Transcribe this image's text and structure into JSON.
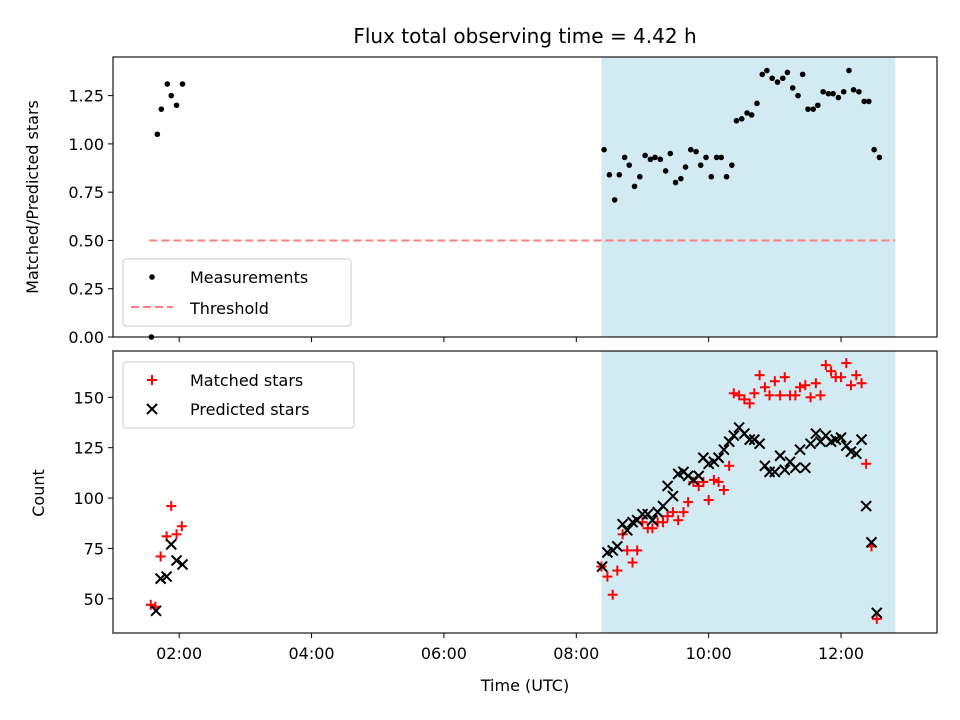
{
  "chart_data": [
    {
      "type": "scatter",
      "title": "Flux total observing time = 4.42 h",
      "xlabel": "",
      "ylabel": "Matched/Predicted stars",
      "x_unit": "hour (UTC)",
      "xlim": [
        1.0,
        13.45
      ],
      "ylim": [
        0.0,
        1.45
      ],
      "yticks": [
        "0.00",
        "0.25",
        "0.50",
        "0.75",
        "1.00",
        "1.25"
      ],
      "highlight_span": [
        8.38,
        12.82
      ],
      "highlight_color": "#add8e6",
      "legend": "lower-left",
      "series": [
        {
          "name": "Measurements",
          "marker": "dot",
          "color": "#000000",
          "points": [
            [
              1.58,
              0.0
            ],
            [
              1.67,
              1.05
            ],
            [
              1.73,
              1.18
            ],
            [
              1.82,
              1.31
            ],
            [
              1.88,
              1.25
            ],
            [
              1.96,
              1.2
            ],
            [
              2.05,
              1.31
            ],
            [
              8.42,
              0.97
            ],
            [
              8.5,
              0.84
            ],
            [
              8.58,
              0.71
            ],
            [
              8.65,
              0.84
            ],
            [
              8.73,
              0.93
            ],
            [
              8.8,
              0.89
            ],
            [
              8.88,
              0.78
            ],
            [
              8.96,
              0.83
            ],
            [
              9.04,
              0.94
            ],
            [
              9.12,
              0.92
            ],
            [
              9.19,
              0.93
            ],
            [
              9.27,
              0.92
            ],
            [
              9.35,
              0.86
            ],
            [
              9.42,
              0.95
            ],
            [
              9.5,
              0.8
            ],
            [
              9.58,
              0.82
            ],
            [
              9.65,
              0.88
            ],
            [
              9.73,
              0.97
            ],
            [
              9.81,
              0.96
            ],
            [
              9.88,
              0.89
            ],
            [
              9.96,
              0.93
            ],
            [
              10.04,
              0.83
            ],
            [
              10.12,
              0.93
            ],
            [
              10.19,
              0.93
            ],
            [
              10.27,
              0.83
            ],
            [
              10.35,
              0.89
            ],
            [
              10.42,
              1.12
            ],
            [
              10.5,
              1.13
            ],
            [
              10.58,
              1.16
            ],
            [
              10.65,
              1.15
            ],
            [
              10.73,
              1.21
            ],
            [
              10.81,
              1.36
            ],
            [
              10.88,
              1.38
            ],
            [
              10.96,
              1.34
            ],
            [
              11.04,
              1.32
            ],
            [
              11.12,
              1.34
            ],
            [
              11.19,
              1.37
            ],
            [
              11.27,
              1.29
            ],
            [
              11.35,
              1.25
            ],
            [
              11.42,
              1.36
            ],
            [
              11.5,
              1.18
            ],
            [
              11.58,
              1.18
            ],
            [
              11.65,
              1.2
            ],
            [
              11.73,
              1.27
            ],
            [
              11.81,
              1.26
            ],
            [
              11.88,
              1.26
            ],
            [
              11.96,
              1.24
            ],
            [
              12.04,
              1.27
            ],
            [
              12.12,
              1.38
            ],
            [
              12.19,
              1.28
            ],
            [
              12.27,
              1.27
            ],
            [
              12.35,
              1.22
            ],
            [
              12.42,
              1.22
            ],
            [
              12.5,
              0.97
            ],
            [
              12.58,
              0.93
            ]
          ]
        },
        {
          "name": "Threshold",
          "marker": "dashed-line",
          "color": "#ff7f7f",
          "points": [
            [
              1.55,
              0.5
            ],
            [
              12.82,
              0.5
            ]
          ]
        }
      ]
    },
    {
      "type": "scatter",
      "title": "",
      "xlabel": "Time (UTC)",
      "ylabel": "Count",
      "x_unit": "hour (UTC)",
      "xlim": [
        1.0,
        13.45
      ],
      "ylim": [
        33,
        173
      ],
      "yticks": [
        "50",
        "75",
        "100",
        "125",
        "150"
      ],
      "xticks": [
        "02:00",
        "04:00",
        "06:00",
        "08:00",
        "10:00",
        "12:00"
      ],
      "highlight_span": [
        8.38,
        12.82
      ],
      "highlight_color": "#add8e6",
      "legend": "upper-left",
      "series": [
        {
          "name": "Matched stars",
          "marker": "plus",
          "color": "#ff0000",
          "points": [
            [
              1.57,
              47
            ],
            [
              1.64,
              46
            ],
            [
              1.72,
              71
            ],
            [
              1.81,
              81
            ],
            [
              1.88,
              96
            ],
            [
              1.96,
              82
            ],
            [
              2.04,
              86
            ],
            [
              8.38,
              66
            ],
            [
              8.47,
              61
            ],
            [
              8.55,
              52
            ],
            [
              8.62,
              64
            ],
            [
              8.7,
              82
            ],
            [
              8.77,
              74
            ],
            [
              8.85,
              68
            ],
            [
              8.92,
              74
            ],
            [
              9.0,
              88
            ],
            [
              9.08,
              85
            ],
            [
              9.15,
              85
            ],
            [
              9.23,
              88
            ],
            [
              9.31,
              88
            ],
            [
              9.38,
              91
            ],
            [
              9.46,
              93
            ],
            [
              9.54,
              89
            ],
            [
              9.62,
              93
            ],
            [
              9.69,
              98
            ],
            [
              9.77,
              108
            ],
            [
              9.85,
              106
            ],
            [
              9.92,
              108
            ],
            [
              10.0,
              99
            ],
            [
              10.08,
              109
            ],
            [
              10.15,
              108
            ],
            [
              10.23,
              104
            ],
            [
              10.31,
              116
            ],
            [
              10.38,
              152
            ],
            [
              10.46,
              151
            ],
            [
              10.54,
              149
            ],
            [
              10.62,
              147
            ],
            [
              10.69,
              152
            ],
            [
              10.77,
              161
            ],
            [
              10.85,
              155
            ],
            [
              10.92,
              151
            ],
            [
              11.0,
              158
            ],
            [
              11.08,
              151
            ],
            [
              11.15,
              160
            ],
            [
              11.23,
              151
            ],
            [
              11.31,
              151
            ],
            [
              11.38,
              155
            ],
            [
              11.46,
              156
            ],
            [
              11.54,
              150
            ],
            [
              11.62,
              157
            ],
            [
              11.69,
              151
            ],
            [
              11.77,
              166
            ],
            [
              11.85,
              163
            ],
            [
              11.92,
              160
            ],
            [
              12.0,
              160
            ],
            [
              12.08,
              167
            ],
            [
              12.15,
              156
            ],
            [
              12.23,
              161
            ],
            [
              12.31,
              157
            ],
            [
              12.38,
              117
            ],
            [
              12.46,
              76
            ],
            [
              12.54,
              40
            ]
          ]
        },
        {
          "name": "Predicted stars",
          "marker": "x",
          "color": "#000000",
          "points": [
            [
              1.65,
              44
            ],
            [
              1.72,
              60
            ],
            [
              1.81,
              61
            ],
            [
              1.88,
              77
            ],
            [
              1.96,
              69
            ],
            [
              2.05,
              67
            ],
            [
              8.39,
              66
            ],
            [
              8.47,
              73
            ],
            [
              8.55,
              74
            ],
            [
              8.62,
              76
            ],
            [
              8.7,
              87
            ],
            [
              8.77,
              84
            ],
            [
              8.85,
              88
            ],
            [
              8.92,
              89
            ],
            [
              9.0,
              92
            ],
            [
              9.08,
              92
            ],
            [
              9.15,
              89
            ],
            [
              9.23,
              93
            ],
            [
              9.31,
              96
            ],
            [
              9.38,
              106
            ],
            [
              9.46,
              101
            ],
            [
              9.54,
              112
            ],
            [
              9.62,
              113
            ],
            [
              9.69,
              111
            ],
            [
              9.77,
              109
            ],
            [
              9.85,
              111
            ],
            [
              9.92,
              120
            ],
            [
              10.0,
              117
            ],
            [
              10.08,
              118
            ],
            [
              10.15,
              120
            ],
            [
              10.23,
              124
            ],
            [
              10.31,
              128
            ],
            [
              10.38,
              131
            ],
            [
              10.46,
              135
            ],
            [
              10.54,
              132
            ],
            [
              10.62,
              129
            ],
            [
              10.69,
              129
            ],
            [
              10.77,
              127
            ],
            [
              10.85,
              116
            ],
            [
              10.92,
              113
            ],
            [
              11.0,
              113
            ],
            [
              11.08,
              121
            ],
            [
              11.15,
              114
            ],
            [
              11.23,
              118
            ],
            [
              11.31,
              115
            ],
            [
              11.38,
              124
            ],
            [
              11.46,
              115
            ],
            [
              11.54,
              127
            ],
            [
              11.62,
              132
            ],
            [
              11.69,
              128
            ],
            [
              11.77,
              131
            ],
            [
              11.85,
              128
            ],
            [
              11.92,
              129
            ],
            [
              12.0,
              130
            ],
            [
              12.08,
              126
            ],
            [
              12.15,
              123
            ],
            [
              12.23,
              122
            ],
            [
              12.31,
              129
            ],
            [
              12.38,
              96
            ],
            [
              12.46,
              78
            ],
            [
              12.54,
              43
            ]
          ]
        }
      ]
    }
  ]
}
